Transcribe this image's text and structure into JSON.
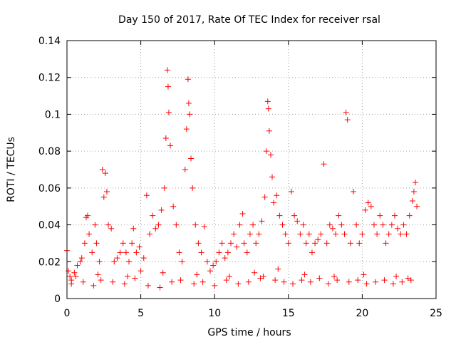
{
  "chart_data": {
    "type": "scatter",
    "title": "Day 150 of 2017, Rate Of TEC Index for receiver rsal",
    "xlabel": "GPS time / hours",
    "ylabel": "ROTI / TECUs",
    "xlim": [
      0,
      25
    ],
    "ylim": [
      0,
      0.14
    ],
    "xticks": [
      0,
      5,
      10,
      15,
      20,
      25
    ],
    "xtick_labels": [
      "0",
      "5",
      "10",
      "15",
      "20",
      "25"
    ],
    "yticks": [
      0,
      0.02,
      0.04,
      0.06,
      0.08,
      0.1,
      0.12,
      0.14
    ],
    "ytick_labels": [
      "0",
      "0.02",
      "0.04",
      "0.06",
      "0.08",
      "0.1",
      "0.12",
      "0.14"
    ],
    "grid": true,
    "marker": "+",
    "colors": {
      "series": "#ff0000",
      "grid": "#a0a0a0",
      "axes": "#000000"
    },
    "series": [
      {
        "name": "ROTI",
        "x": [
          0.0,
          0.1,
          0.2,
          0.3,
          0.5,
          0.7,
          0.9,
          1.0,
          1.2,
          1.3,
          1.4,
          1.5,
          1.7,
          1.9,
          2.0,
          2.2,
          2.4,
          2.5,
          2.6,
          2.7,
          2.8,
          3.0,
          3.2,
          3.4,
          3.6,
          3.8,
          4.0,
          4.2,
          4.4,
          4.5,
          4.7,
          4.9,
          5.0,
          5.2,
          5.4,
          5.6,
          5.8,
          6.0,
          6.2,
          6.4,
          6.6,
          6.7,
          6.8,
          6.85,
          6.9,
          7.0,
          7.2,
          7.4,
          7.6,
          7.8,
          8.0,
          8.1,
          8.2,
          8.25,
          8.3,
          8.4,
          8.5,
          8.7,
          8.9,
          9.1,
          9.3,
          9.5,
          9.7,
          9.9,
          10.1,
          10.3,
          10.5,
          10.7,
          10.9,
          11.1,
          11.3,
          11.5,
          11.7,
          11.9,
          12.0,
          12.2,
          12.4,
          12.6,
          12.8,
          13.0,
          13.2,
          13.4,
          13.5,
          13.6,
          13.65,
          13.7,
          13.8,
          13.9,
          14.0,
          14.2,
          14.4,
          14.6,
          14.8,
          15.0,
          15.2,
          15.4,
          15.6,
          15.8,
          16.0,
          16.2,
          16.4,
          16.6,
          16.8,
          17.0,
          17.2,
          17.4,
          17.6,
          17.8,
          18.0,
          18.2,
          18.4,
          18.6,
          18.8,
          18.9,
          19.0,
          19.2,
          19.4,
          19.6,
          19.8,
          20.0,
          20.2,
          20.4,
          20.6,
          20.8,
          21.0,
          21.2,
          21.4,
          21.6,
          21.8,
          22.0,
          22.2,
          22.4,
          22.6,
          22.8,
          23.0,
          23.2,
          23.4,
          23.5,
          23.6,
          23.7,
          0.3,
          1.1,
          1.8,
          2.3,
          3.1,
          3.9,
          4.6,
          5.5,
          6.3,
          7.1,
          7.7,
          8.6,
          9.2,
          10.0,
          10.8,
          11.6,
          12.3,
          13.1,
          13.3,
          14.1,
          14.7,
          15.3,
          15.9,
          16.5,
          17.1,
          17.7,
          18.3,
          19.1,
          19.7,
          20.3,
          20.9,
          21.5,
          22.1,
          22.7,
          23.3,
          0.6,
          2.1,
          4.1,
          6.5,
          8.8,
          11.0,
          12.7,
          14.3,
          16.1,
          18.1,
          20.1,
          22.3,
          23.1
        ],
        "y": [
          0.026,
          0.015,
          0.012,
          0.01,
          0.014,
          0.018,
          0.02,
          0.022,
          0.03,
          0.044,
          0.045,
          0.035,
          0.025,
          0.04,
          0.03,
          0.02,
          0.07,
          0.055,
          0.068,
          0.058,
          0.04,
          0.038,
          0.02,
          0.022,
          0.025,
          0.03,
          0.025,
          0.02,
          0.03,
          0.038,
          0.025,
          0.028,
          0.015,
          0.022,
          0.056,
          0.035,
          0.045,
          0.038,
          0.04,
          0.048,
          0.06,
          0.087,
          0.124,
          0.115,
          0.101,
          0.083,
          0.05,
          0.04,
          0.025,
          0.02,
          0.07,
          0.092,
          0.119,
          0.106,
          0.1,
          0.076,
          0.06,
          0.04,
          0.03,
          0.025,
          0.039,
          0.02,
          0.015,
          0.018,
          0.02,
          0.025,
          0.03,
          0.022,
          0.025,
          0.03,
          0.035,
          0.028,
          0.04,
          0.046,
          0.03,
          0.025,
          0.035,
          0.04,
          0.03,
          0.035,
          0.042,
          0.055,
          0.08,
          0.107,
          0.103,
          0.091,
          0.078,
          0.066,
          0.052,
          0.056,
          0.045,
          0.04,
          0.035,
          0.03,
          0.058,
          0.045,
          0.042,
          0.035,
          0.04,
          0.03,
          0.035,
          0.025,
          0.03,
          0.032,
          0.035,
          0.073,
          0.03,
          0.04,
          0.038,
          0.035,
          0.045,
          0.04,
          0.035,
          0.101,
          0.097,
          0.03,
          0.058,
          0.04,
          0.03,
          0.035,
          0.048,
          0.052,
          0.05,
          0.04,
          0.035,
          0.045,
          0.04,
          0.03,
          0.035,
          0.04,
          0.045,
          0.038,
          0.035,
          0.04,
          0.035,
          0.045,
          0.053,
          0.058,
          0.063,
          0.05,
          0.008,
          0.009,
          0.007,
          0.01,
          0.009,
          0.008,
          0.011,
          0.007,
          0.006,
          0.009,
          0.01,
          0.008,
          0.009,
          0.007,
          0.01,
          0.008,
          0.009,
          0.011,
          0.012,
          0.01,
          0.009,
          0.008,
          0.01,
          0.009,
          0.011,
          0.008,
          0.01,
          0.009,
          0.01,
          0.008,
          0.009,
          0.01,
          0.008,
          0.009,
          0.01,
          0.012,
          0.013,
          0.012,
          0.014,
          0.013,
          0.012,
          0.014,
          0.016,
          0.013,
          0.012,
          0.013,
          0.012,
          0.011
        ]
      }
    ]
  }
}
